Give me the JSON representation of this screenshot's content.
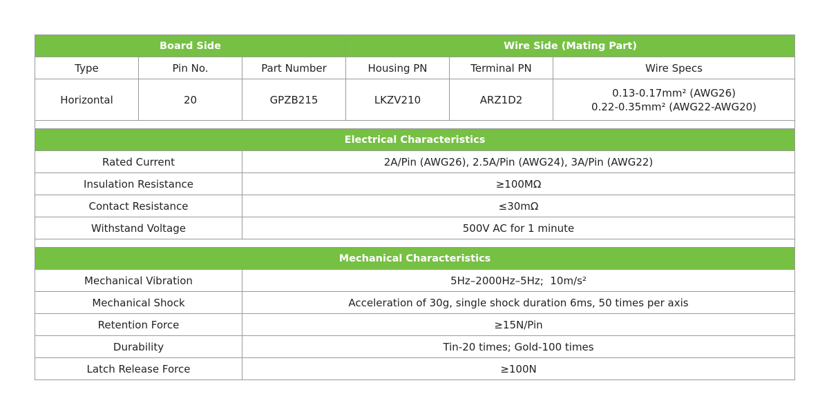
{
  "colors": {
    "header_green": "#76c043",
    "border": "#9a9a9a"
  },
  "board_side": "Board Side",
  "wire_side": "Wire Side (Mating Part)",
  "columns": [
    "Type",
    "Pin No.",
    "Part Number",
    "Housing PN",
    "Terminal PN",
    "Wire Specs"
  ],
  "product": {
    "type": "Horizontal",
    "pin_no": "20",
    "part_number": "GPZB215",
    "housing_pn": "LKZV210",
    "terminal_pn": "ARZ1D2",
    "wire_specs": [
      "0.13-0.17mm² (AWG26)",
      "0.22-0.35mm² (AWG22-AWG20)"
    ]
  },
  "electrical": {
    "title": "Electrical Characteristics",
    "rows": [
      {
        "label": "Rated Current",
        "value": "2A/Pin (AWG26), 2.5A/Pin (AWG24), 3A/Pin (AWG22)"
      },
      {
        "label": "Insulation Resistance",
        "value": "≥100MΩ"
      },
      {
        "label": "Contact Resistance",
        "value": "≤30mΩ"
      },
      {
        "label": "Withstand Voltage",
        "value": "500V AC for 1 minute"
      }
    ]
  },
  "mechanical": {
    "title": "Mechanical Characteristics",
    "rows": [
      {
        "label": "Mechanical Vibration",
        "value": "5Hz–2000Hz–5Hz;  10m/s²"
      },
      {
        "label": "Mechanical Shock",
        "value": "Acceleration of 30g, single shock duration 6ms, 50 times per axis"
      },
      {
        "label": "Retention Force",
        "value": "≥15N/Pin"
      },
      {
        "label": "Durability",
        "value": "Tin-20 times; Gold-100 times"
      },
      {
        "label": "Latch Release Force",
        "value": "≥100N"
      }
    ]
  }
}
